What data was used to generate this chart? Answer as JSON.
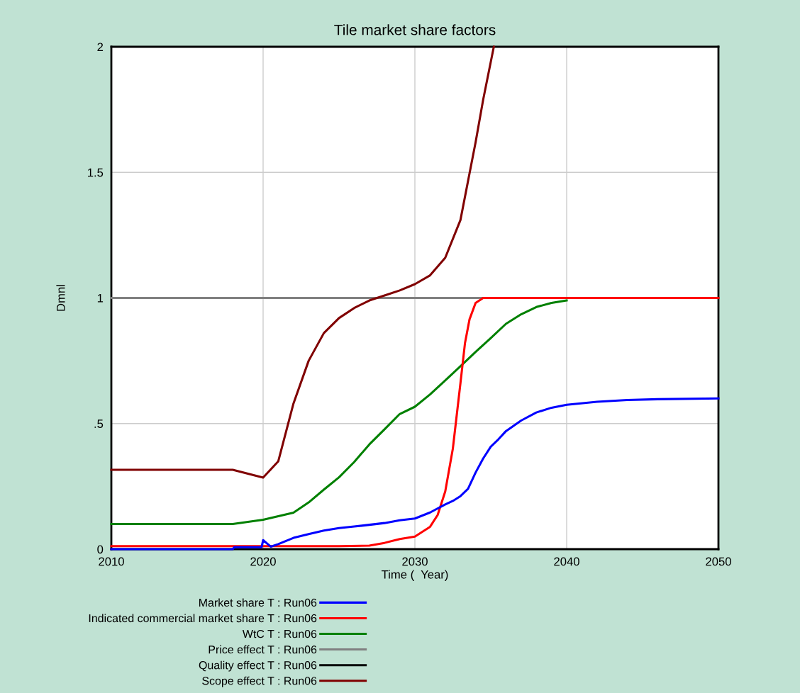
{
  "chart_data": {
    "type": "line",
    "title": "Tile market share factors",
    "xlabel": "Time (  Year)",
    "ylabel": "Dmnl",
    "xlim": [
      2010,
      2050
    ],
    "xticks": [
      2010,
      2020,
      2030,
      2040,
      2050
    ],
    "ylim": [
      0,
      2
    ],
    "yticks": [
      0,
      {
        "value": 0.5,
        "label": ".5"
      },
      1,
      1.5,
      2
    ],
    "grid": true,
    "legend": "bottom",
    "marker": "none",
    "line_style": "solid",
    "series": [
      {
        "name": "Market share T : Run06",
        "color": "#0000ff",
        "x": [
          2010,
          2018,
          2018.1,
          2019.9,
          2020,
          2020.5,
          2021,
          2022,
          2023,
          2024,
          2025,
          2026,
          2027,
          2028,
          2029,
          2030,
          2031,
          2032,
          2032.5,
          2033,
          2033.5,
          2034,
          2034.5,
          2035,
          2035.5,
          2036,
          2037,
          2038,
          2039,
          2040,
          2042,
          2044,
          2046,
          2050
        ],
        "values": [
          0.0,
          0.0,
          0.008,
          0.008,
          0.036,
          0.01,
          0.02,
          0.045,
          0.06,
          0.074,
          0.084,
          0.09,
          0.097,
          0.104,
          0.115,
          0.122,
          0.146,
          0.178,
          0.192,
          0.211,
          0.24,
          0.305,
          0.361,
          0.408,
          0.437,
          0.47,
          0.512,
          0.544,
          0.563,
          0.575,
          0.587,
          0.594,
          0.597,
          0.6
        ]
      },
      {
        "name": "Indicated commercial market share T : Run06",
        "color": "#ff0000",
        "x": [
          2010,
          2025,
          2027,
          2028,
          2029,
          2030,
          2031,
          2031.5,
          2032,
          2032.5,
          2033,
          2033.3,
          2033.6,
          2034,
          2034.5,
          2050
        ],
        "values": [
          0.012,
          0.012,
          0.014,
          0.025,
          0.04,
          0.05,
          0.089,
          0.136,
          0.23,
          0.4,
          0.66,
          0.82,
          0.915,
          0.98,
          1.0,
          1.0
        ]
      },
      {
        "name": "WtC T : Run06",
        "color": "#008000",
        "x": [
          2010,
          2018,
          2020,
          2022,
          2023,
          2024,
          2025,
          2026,
          2027,
          2028,
          2029,
          2030,
          2031,
          2032,
          2033,
          2034,
          2035,
          2036,
          2037,
          2038,
          2039,
          2040
        ],
        "values": [
          0.1,
          0.1,
          0.117,
          0.145,
          0.186,
          0.237,
          0.286,
          0.347,
          0.417,
          0.477,
          0.538,
          0.567,
          0.616,
          0.672,
          0.728,
          0.785,
          0.84,
          0.897,
          0.935,
          0.964,
          0.98,
          0.99
        ]
      },
      {
        "name": "Price effect T : Run06",
        "color": "#808080",
        "x": [
          2010,
          2034.5
        ],
        "values": [
          1.0,
          1.0
        ]
      },
      {
        "name": "Quality effect T : Run06",
        "color": "#000000"
      },
      {
        "name": "Scope effect T : Run06",
        "color": "#800000",
        "x": [
          2010,
          2018,
          2020,
          2021,
          2022,
          2023,
          2024,
          2025,
          2026,
          2027,
          2028,
          2029,
          2030,
          2031,
          2032,
          2033,
          2034,
          2034.5,
          2035.2
        ],
        "values": [
          0.316,
          0.316,
          0.285,
          0.35,
          0.58,
          0.75,
          0.86,
          0.92,
          0.96,
          0.99,
          1.01,
          1.03,
          1.055,
          1.09,
          1.16,
          1.31,
          1.62,
          1.79,
          2.0
        ]
      }
    ]
  }
}
